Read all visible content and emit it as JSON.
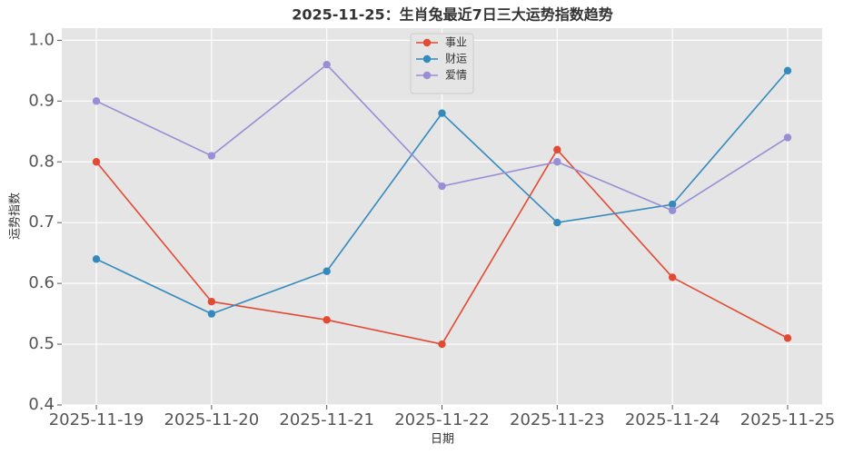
{
  "chart_data": {
    "type": "line",
    "title": "2025-11-25：生肖兔最近7日三大运势指数趋势",
    "x_label": "日期",
    "y_label": "运势指数",
    "categories": [
      "2025-11-19",
      "2025-11-20",
      "2025-11-21",
      "2025-11-22",
      "2025-11-23",
      "2025-11-24",
      "2025-11-25"
    ],
    "series": [
      {
        "name": "事业",
        "color": "#E24A33",
        "values": [
          0.8,
          0.57,
          0.54,
          0.5,
          0.82,
          0.61,
          0.51
        ]
      },
      {
        "name": "财运",
        "color": "#348ABD",
        "values": [
          0.64,
          0.55,
          0.62,
          0.88,
          0.7,
          0.73,
          0.95
        ]
      },
      {
        "name": "爱情",
        "color": "#988ED5",
        "values": [
          0.9,
          0.81,
          0.96,
          0.76,
          0.8,
          0.72,
          0.84
        ]
      }
    ],
    "ylim": [
      0.4,
      1.02
    ],
    "yticks": [
      0.4,
      0.5,
      0.6,
      0.7,
      0.8,
      0.9,
      {
        "value": 1,
        "label": "1.0"
      }
    ],
    "grid": true,
    "legend": "upper center"
  }
}
